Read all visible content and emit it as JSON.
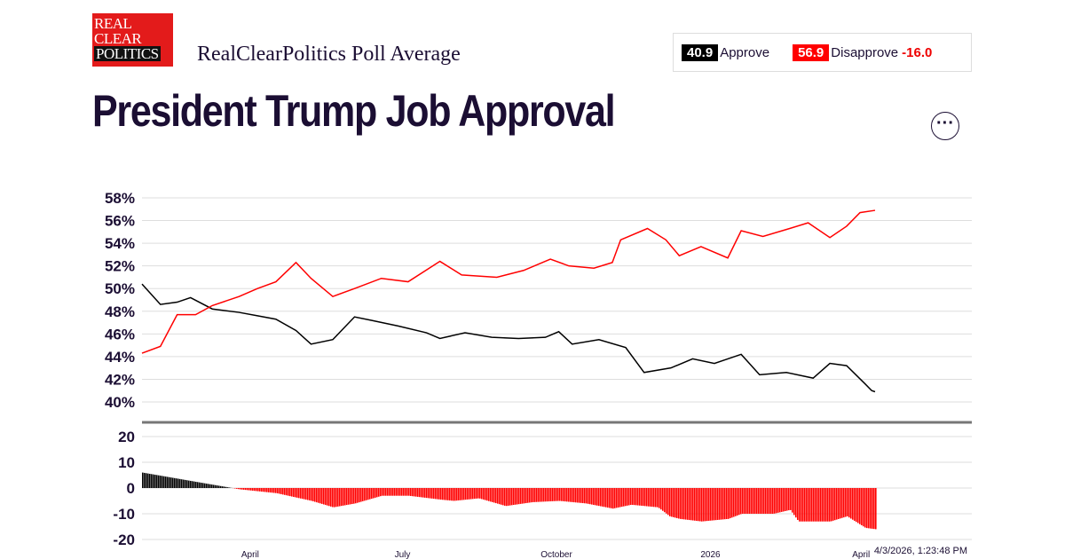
{
  "header": {
    "logo_text": "REAL CLEAR POLITICS",
    "subtitle": "RealClearPolitics Poll Average",
    "title": "President Trump Job Approval",
    "more_icon": "ellipsis-icon"
  },
  "legend": {
    "approve_value": "40.9",
    "approve_label": "Approve",
    "disapprove_value": "56.9",
    "disapprove_label": "Disapprove",
    "spread": "-16.0"
  },
  "colors": {
    "approve": "#000000",
    "disapprove": "#ff0000",
    "spread_negative": "#ff0000",
    "spread_positive": "#000000"
  },
  "timestamp": "4/3/2026, 1:23:48 PM",
  "chart_data": [
    {
      "type": "line",
      "ylim": [
        40,
        58
      ],
      "yticks": [
        "58%",
        "56%",
        "54%",
        "52%",
        "50%",
        "48%",
        "46%",
        "44%",
        "42%",
        "40%"
      ],
      "grid": true,
      "xrange": [
        "2025-01-20",
        "2026-04-03"
      ],
      "series": [
        {
          "name": "Approve",
          "points": [
            [
              "2025-01-20",
              50.4
            ],
            [
              "2025-01-31",
              48.6
            ],
            [
              "2025-02-10",
              48.8
            ],
            [
              "2025-02-18",
              49.2
            ],
            [
              "2025-03-03",
              48.2
            ],
            [
              "2025-03-19",
              47.9
            ],
            [
              "2025-03-30",
              47.6
            ],
            [
              "2025-04-10",
              47.3
            ],
            [
              "2025-04-22",
              46.3
            ],
            [
              "2025-05-01",
              45.1
            ],
            [
              "2025-05-14",
              45.5
            ],
            [
              "2025-05-27",
              47.5
            ],
            [
              "2025-06-06",
              47.2
            ],
            [
              "2025-06-22",
              46.7
            ],
            [
              "2025-07-09",
              46.1
            ],
            [
              "2025-07-17",
              45.6
            ],
            [
              "2025-08-01",
              46.1
            ],
            [
              "2025-08-17",
              45.7
            ],
            [
              "2025-09-02",
              45.6
            ],
            [
              "2025-09-18",
              45.7
            ],
            [
              "2025-09-26",
              46.2
            ],
            [
              "2025-10-04",
              45.1
            ],
            [
              "2025-10-20",
              45.5
            ],
            [
              "2025-11-05",
              44.8
            ],
            [
              "2025-11-16",
              42.6
            ],
            [
              "2025-12-02",
              43.0
            ],
            [
              "2025-12-15",
              43.8
            ],
            [
              "2025-12-28",
              43.4
            ],
            [
              "2026-01-13",
              44.2
            ],
            [
              "2026-01-24",
              42.4
            ],
            [
              "2026-02-09",
              42.6
            ],
            [
              "2026-02-25",
              42.1
            ],
            [
              "2026-03-07",
              43.4
            ],
            [
              "2026-03-17",
              43.2
            ],
            [
              "2026-03-28",
              41.6
            ],
            [
              "2026-04-01",
              41.0
            ],
            [
              "2026-04-03",
              40.9
            ]
          ]
        },
        {
          "name": "Disapprove",
          "points": [
            [
              "2025-01-20",
              44.3
            ],
            [
              "2025-01-31",
              44.9
            ],
            [
              "2025-02-10",
              47.7
            ],
            [
              "2025-02-21",
              47.7
            ],
            [
              "2025-03-03",
              48.5
            ],
            [
              "2025-03-19",
              49.3
            ],
            [
              "2025-03-30",
              50.0
            ],
            [
              "2025-04-10",
              50.6
            ],
            [
              "2025-04-22",
              52.3
            ],
            [
              "2025-05-01",
              50.9
            ],
            [
              "2025-05-14",
              49.3
            ],
            [
              "2025-05-27",
              50.0
            ],
            [
              "2025-06-12",
              50.9
            ],
            [
              "2025-06-28",
              50.6
            ],
            [
              "2025-07-17",
              52.4
            ],
            [
              "2025-07-30",
              51.2
            ],
            [
              "2025-08-20",
              51.0
            ],
            [
              "2025-09-05",
              51.6
            ],
            [
              "2025-09-21",
              52.6
            ],
            [
              "2025-10-02",
              52.0
            ],
            [
              "2025-10-17",
              51.8
            ],
            [
              "2025-10-28",
              52.3
            ],
            [
              "2025-11-02",
              54.3
            ],
            [
              "2025-11-18",
              55.3
            ],
            [
              "2025-11-29",
              54.3
            ],
            [
              "2025-12-07",
              52.9
            ],
            [
              "2025-12-20",
              53.7
            ],
            [
              "2026-01-05",
              52.7
            ],
            [
              "2026-01-13",
              55.1
            ],
            [
              "2026-01-26",
              54.6
            ],
            [
              "2026-02-11",
              55.3
            ],
            [
              "2026-02-22",
              55.8
            ],
            [
              "2026-03-07",
              54.5
            ],
            [
              "2026-03-17",
              55.5
            ],
            [
              "2026-03-25",
              56.7
            ],
            [
              "2026-04-03",
              56.9
            ]
          ]
        }
      ]
    },
    {
      "type": "bar",
      "ylim": [
        -20,
        20
      ],
      "yticks": [
        "20",
        "10",
        "0",
        "-10",
        "-20"
      ],
      "grid": true,
      "xticks": [
        "April",
        "July",
        "October",
        "2026",
        "April"
      ],
      "series": [
        {
          "name": "Spread",
          "points": [
            [
              "2025-01-20",
              6
            ],
            [
              "2025-03-01",
              1.5
            ],
            [
              "2025-03-19",
              -0.5
            ],
            [
              "2025-04-10",
              -2
            ],
            [
              "2025-05-01",
              -5
            ],
            [
              "2025-05-14",
              -7.5
            ],
            [
              "2025-05-27",
              -6
            ],
            [
              "2025-06-12",
              -3
            ],
            [
              "2025-06-28",
              -3
            ],
            [
              "2025-07-17",
              -4.5
            ],
            [
              "2025-07-25",
              -5
            ],
            [
              "2025-08-09",
              -4
            ],
            [
              "2025-08-25",
              -7
            ],
            [
              "2025-09-10",
              -5.5
            ],
            [
              "2025-09-26",
              -5
            ],
            [
              "2025-10-12",
              -6
            ],
            [
              "2025-10-28",
              -8
            ],
            [
              "2025-11-08",
              -6.5
            ],
            [
              "2025-11-24",
              -7.5
            ],
            [
              "2025-12-01",
              -11
            ],
            [
              "2025-12-07",
              -12
            ],
            [
              "2025-12-20",
              -13
            ],
            [
              "2026-01-05",
              -12
            ],
            [
              "2026-01-13",
              -10
            ],
            [
              "2026-02-01",
              -10
            ],
            [
              "2026-02-11",
              -8.5
            ],
            [
              "2026-02-16",
              -13
            ],
            [
              "2026-03-07",
              -13
            ],
            [
              "2026-03-17",
              -11
            ],
            [
              "2026-03-28",
              -15.5
            ],
            [
              "2026-04-03",
              -16
            ]
          ]
        }
      ]
    }
  ]
}
